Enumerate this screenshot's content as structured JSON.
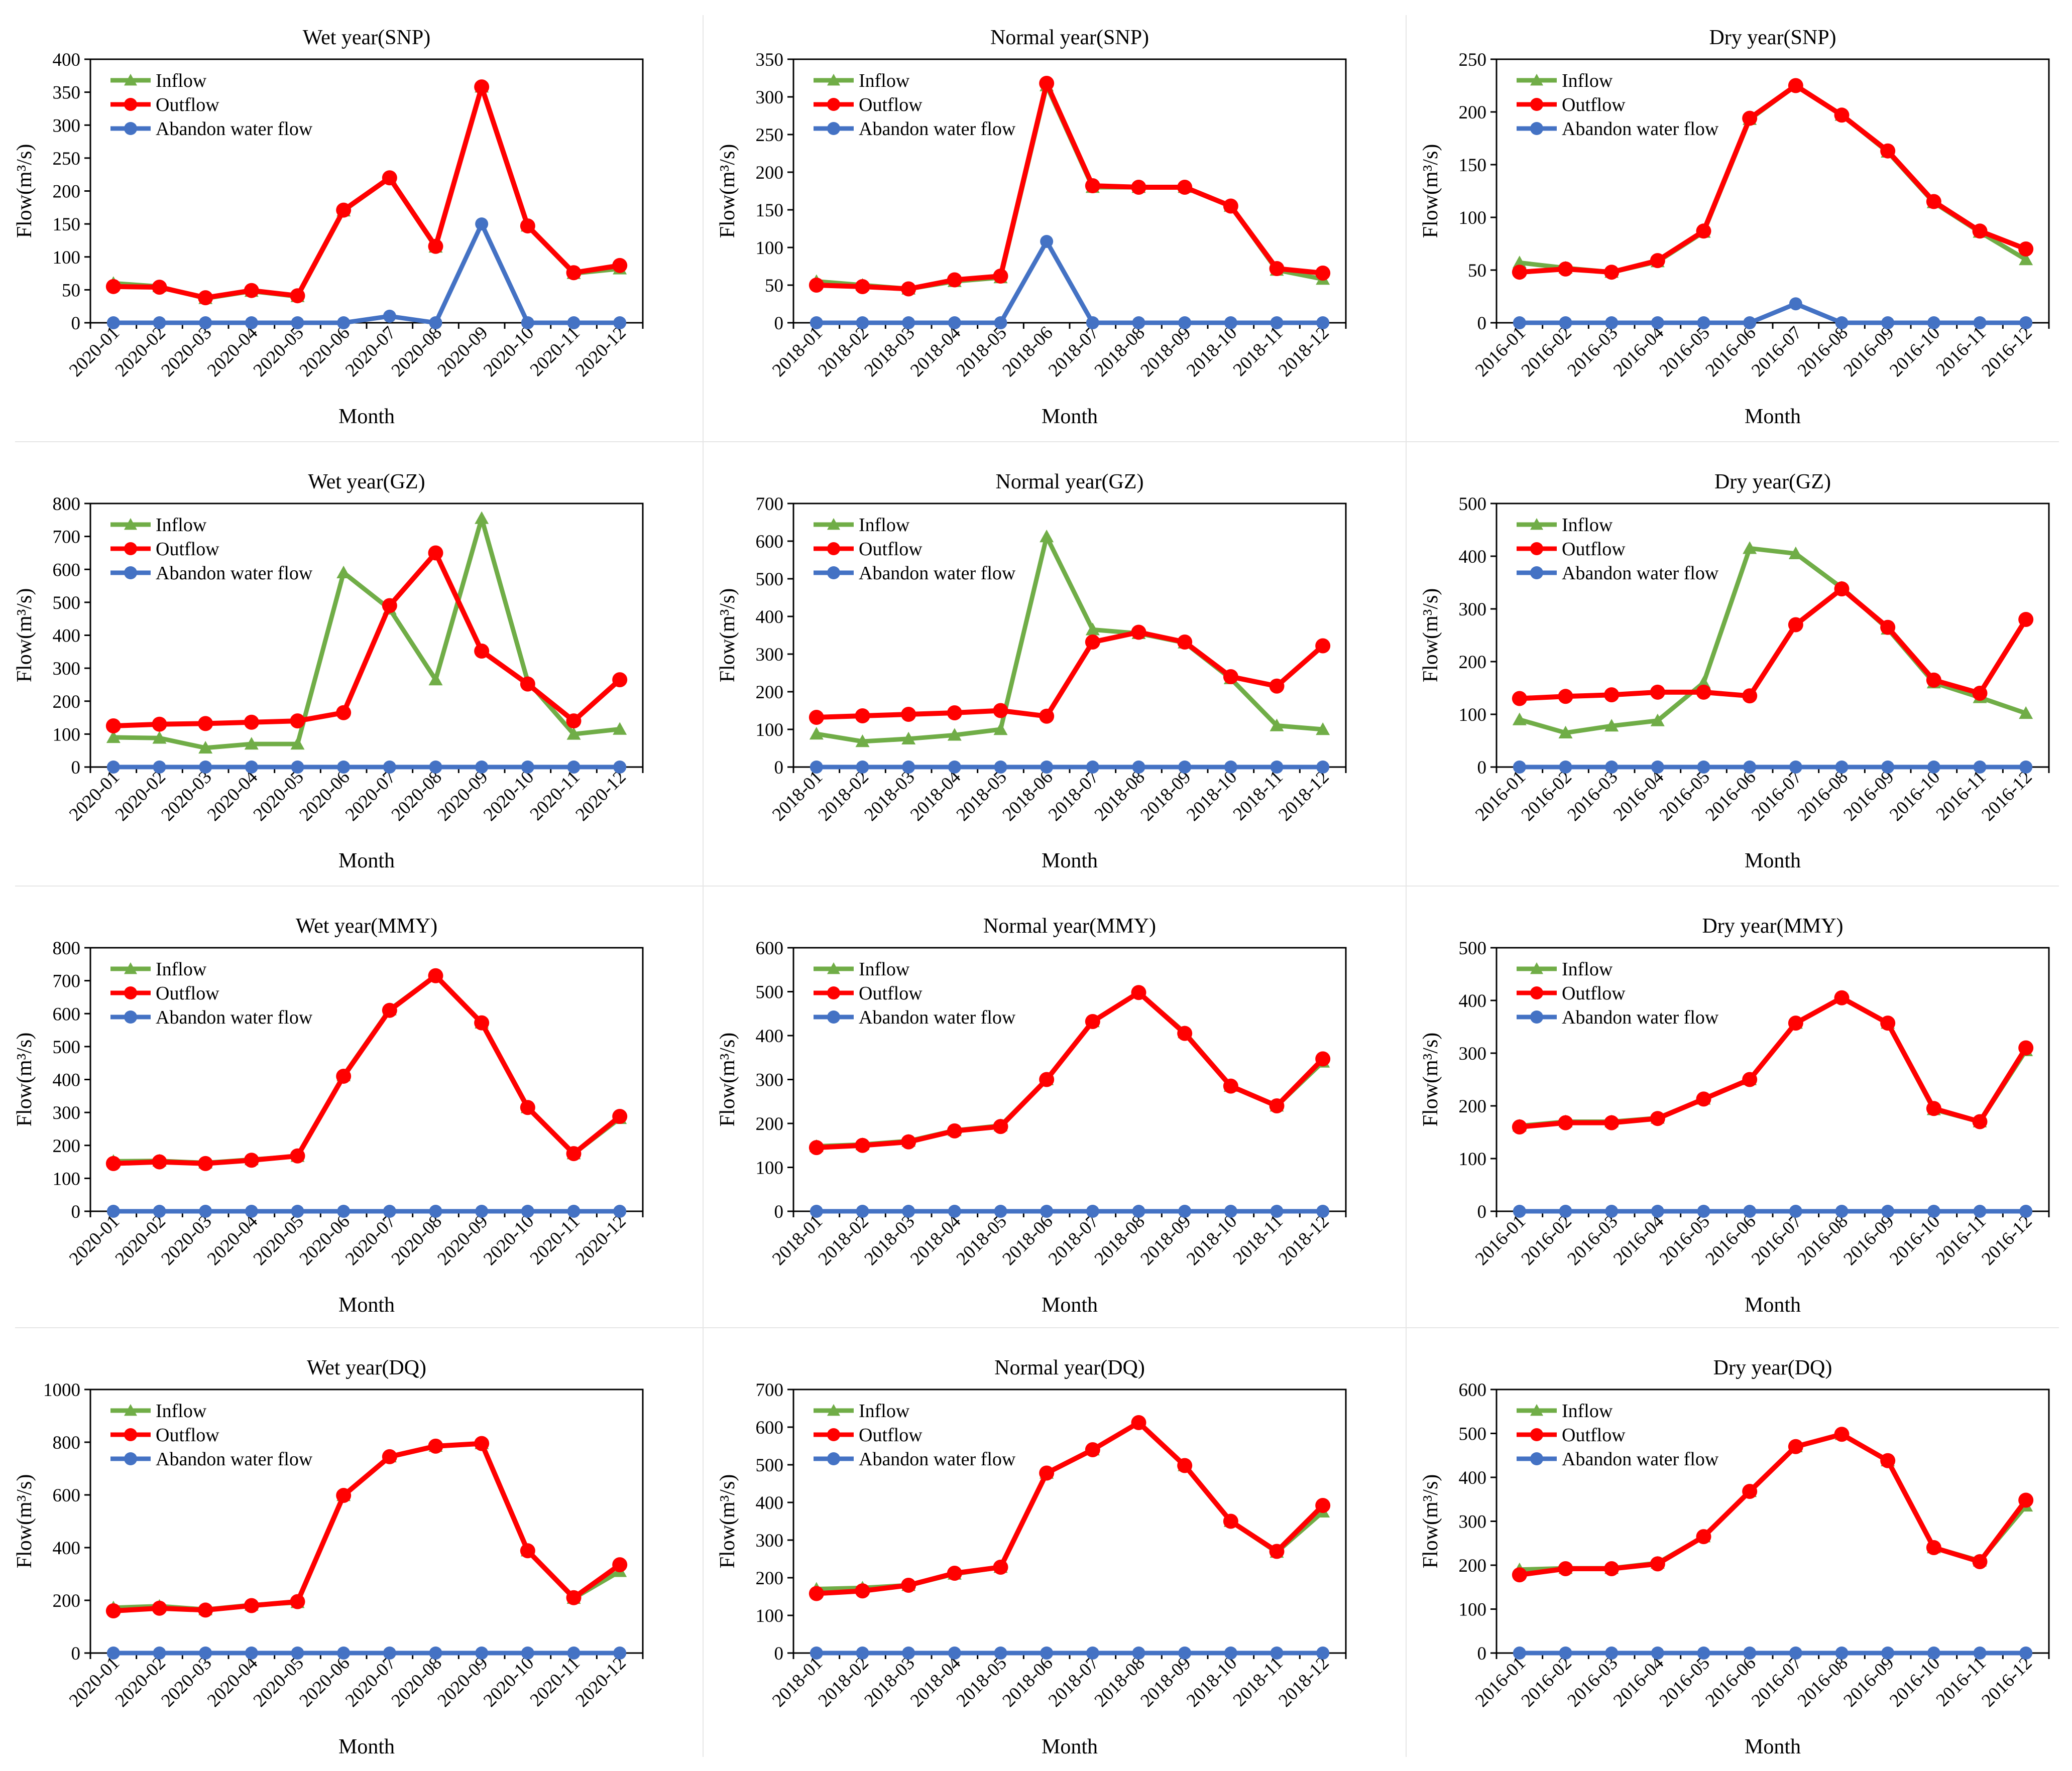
{
  "colors": {
    "inflow": "#70ad47",
    "outflow": "#ff0000",
    "abandon": "#4472c4"
  },
  "chart_data": [
    {
      "type": "line",
      "title": "Wet year(SNP)",
      "xlabel": "Month",
      "ylabel": "Flow(m³/s)",
      "categories": [
        "2020-01",
        "2020-02",
        "2020-03",
        "2020-04",
        "2020-05",
        "2020-06",
        "2020-07",
        "2020-08",
        "2020-09",
        "2020-10",
        "2020-11",
        "2020-12"
      ],
      "ylim": [
        0,
        400
      ],
      "yticks": [
        "0",
        "50",
        "100",
        "150",
        "200",
        "250",
        "300",
        "350",
        "400"
      ],
      "series": [
        {
          "name": "Inflow",
          "values": [
            60,
            55,
            37,
            48,
            40,
            170,
            220,
            115,
            358,
            147,
            75,
            82
          ]
        },
        {
          "name": "Outflow",
          "values": [
            55,
            54,
            38,
            49,
            41,
            171,
            220,
            116,
            358,
            147,
            76,
            87
          ]
        },
        {
          "name": "Abandon water flow",
          "values": [
            0,
            0,
            0,
            0,
            0,
            0,
            10,
            0,
            150,
            0,
            0,
            0
          ]
        }
      ]
    },
    {
      "type": "line",
      "title": "Normal year(SNP)",
      "xlabel": "Month",
      "ylabel": "Flow(m³/s)",
      "categories": [
        "2018-01",
        "2018-02",
        "2018-03",
        "2018-04",
        "2018-05",
        "2018-06",
        "2018-07",
        "2018-08",
        "2018-09",
        "2018-10",
        "2018-11",
        "2018-12"
      ],
      "ylim": [
        0,
        350
      ],
      "yticks": [
        "0",
        "50",
        "100",
        "150",
        "200",
        "250",
        "300",
        "350"
      ],
      "series": [
        {
          "name": "Inflow",
          "values": [
            55,
            50,
            45,
            55,
            60,
            315,
            180,
            180,
            180,
            155,
            70,
            58
          ]
        },
        {
          "name": "Outflow",
          "values": [
            50,
            48,
            45,
            57,
            62,
            318,
            182,
            180,
            180,
            155,
            72,
            66
          ]
        },
        {
          "name": "Abandon water flow",
          "values": [
            0,
            0,
            0,
            0,
            0,
            108,
            0,
            0,
            0,
            0,
            0,
            0
          ]
        }
      ]
    },
    {
      "type": "line",
      "title": "Dry year(SNP)",
      "xlabel": "Month",
      "ylabel": "Flow(m³/s)",
      "categories": [
        "2016-01",
        "2016-02",
        "2016-03",
        "2016-04",
        "2016-05",
        "2016-06",
        "2016-07",
        "2016-08",
        "2016-09",
        "2016-10",
        "2016-11",
        "2016-12"
      ],
      "ylim": [
        0,
        250
      ],
      "yticks": [
        "0",
        "50",
        "100",
        "150",
        "200",
        "250"
      ],
      "series": [
        {
          "name": "Inflow",
          "values": [
            57,
            52,
            48,
            58,
            86,
            193,
            225,
            197,
            162,
            114,
            86,
            60
          ]
        },
        {
          "name": "Outflow",
          "values": [
            48,
            51,
            48,
            59,
            87,
            194,
            225,
            197,
            163,
            115,
            87,
            70
          ]
        },
        {
          "name": "Abandon water flow",
          "values": [
            0,
            0,
            0,
            0,
            0,
            0,
            18,
            0,
            0,
            0,
            0,
            0
          ]
        }
      ]
    },
    {
      "type": "line",
      "title": "Wet year(GZ)",
      "xlabel": "Month",
      "ylabel": "Flow(m³/s)",
      "categories": [
        "2020-01",
        "2020-02",
        "2020-03",
        "2020-04",
        "2020-05",
        "2020-06",
        "2020-07",
        "2020-08",
        "2020-09",
        "2020-10",
        "2020-11",
        "2020-12"
      ],
      "ylim": [
        0,
        800
      ],
      "yticks": [
        "0",
        "100",
        "200",
        "300",
        "400",
        "500",
        "600",
        "700",
        "800"
      ],
      "series": [
        {
          "name": "Inflow",
          "values": [
            90,
            88,
            58,
            70,
            70,
            590,
            480,
            265,
            755,
            260,
            100,
            115
          ]
        },
        {
          "name": "Outflow",
          "values": [
            125,
            130,
            132,
            136,
            140,
            165,
            490,
            650,
            352,
            252,
            140,
            265
          ]
        },
        {
          "name": "Abandon water flow",
          "values": [
            0,
            0,
            0,
            0,
            0,
            0,
            0,
            0,
            0,
            0,
            0,
            0
          ]
        }
      ]
    },
    {
      "type": "line",
      "title": "Normal year(GZ)",
      "xlabel": "Month",
      "ylabel": "Flow(m³/s)",
      "categories": [
        "2018-01",
        "2018-02",
        "2018-03",
        "2018-04",
        "2018-05",
        "2018-06",
        "2018-07",
        "2018-08",
        "2018-09",
        "2018-10",
        "2018-11",
        "2018-12"
      ],
      "ylim": [
        0,
        700
      ],
      "yticks": [
        "0",
        "100",
        "200",
        "300",
        "400",
        "500",
        "600",
        "700"
      ],
      "series": [
        {
          "name": "Inflow",
          "values": [
            88,
            68,
            75,
            85,
            100,
            612,
            365,
            355,
            330,
            235,
            110,
            100
          ]
        },
        {
          "name": "Outflow",
          "values": [
            132,
            136,
            140,
            144,
            150,
            135,
            332,
            358,
            332,
            240,
            215,
            322
          ]
        },
        {
          "name": "Abandon water flow",
          "values": [
            0,
            0,
            0,
            0,
            0,
            0,
            0,
            0,
            0,
            0,
            0,
            0
          ]
        }
      ]
    },
    {
      "type": "line",
      "title": "Dry year(GZ)",
      "xlabel": "Month",
      "ylabel": "Flow(m³/s)",
      "categories": [
        "2016-01",
        "2016-02",
        "2016-03",
        "2016-04",
        "2016-05",
        "2016-06",
        "2016-07",
        "2016-08",
        "2016-09",
        "2016-10",
        "2016-11",
        "2016-12"
      ],
      "ylim": [
        0,
        500
      ],
      "yticks": [
        "0",
        "100",
        "200",
        "300",
        "400",
        "500"
      ],
      "series": [
        {
          "name": "Inflow",
          "values": [
            90,
            65,
            78,
            88,
            160,
            415,
            405,
            340,
            262,
            160,
            132,
            102
          ]
        },
        {
          "name": "Outflow",
          "values": [
            130,
            134,
            137,
            142,
            142,
            135,
            270,
            338,
            265,
            165,
            140,
            280
          ]
        },
        {
          "name": "Abandon water flow",
          "values": [
            0,
            0,
            0,
            0,
            0,
            0,
            0,
            0,
            0,
            0,
            0,
            0
          ]
        }
      ]
    },
    {
      "type": "line",
      "title": "Wet year(MMY)",
      "xlabel": "Month",
      "ylabel": "Flow(m³/s)",
      "categories": [
        "2020-01",
        "2020-02",
        "2020-03",
        "2020-04",
        "2020-05",
        "2020-06",
        "2020-07",
        "2020-08",
        "2020-09",
        "2020-10",
        "2020-11",
        "2020-12"
      ],
      "ylim": [
        0,
        800
      ],
      "yticks": [
        "0",
        "100",
        "200",
        "300",
        "400",
        "500",
        "600",
        "700",
        "800"
      ],
      "series": [
        {
          "name": "Inflow",
          "values": [
            152,
            153,
            147,
            157,
            167,
            412,
            612,
            715,
            572,
            315,
            175,
            282
          ]
        },
        {
          "name": "Outflow",
          "values": [
            145,
            150,
            145,
            155,
            168,
            410,
            610,
            715,
            572,
            315,
            175,
            288
          ]
        },
        {
          "name": "Abandon water flow",
          "values": [
            0,
            0,
            0,
            0,
            0,
            0,
            0,
            0,
            0,
            0,
            0,
            0
          ]
        }
      ]
    },
    {
      "type": "line",
      "title": "Normal year(MMY)",
      "xlabel": "Month",
      "ylabel": "Flow(m³/s)",
      "categories": [
        "2018-01",
        "2018-02",
        "2018-03",
        "2018-04",
        "2018-05",
        "2018-06",
        "2018-07",
        "2018-08",
        "2018-09",
        "2018-10",
        "2018-11",
        "2018-12"
      ],
      "ylim": [
        0,
        600
      ],
      "yticks": [
        "0",
        "100",
        "200",
        "300",
        "400",
        "500",
        "600"
      ],
      "series": [
        {
          "name": "Inflow",
          "values": [
            148,
            152,
            160,
            184,
            195,
            300,
            432,
            498,
            407,
            285,
            240,
            340
          ]
        },
        {
          "name": "Outflow",
          "values": [
            145,
            150,
            158,
            183,
            193,
            300,
            432,
            498,
            405,
            285,
            240,
            347
          ]
        },
        {
          "name": "Abandon water flow",
          "values": [
            0,
            0,
            0,
            0,
            0,
            0,
            0,
            0,
            0,
            0,
            0,
            0
          ]
        }
      ]
    },
    {
      "type": "line",
      "title": "Dry year(MMY)",
      "xlabel": "Month",
      "ylabel": "Flow(m³/s)",
      "categories": [
        "2016-01",
        "2016-02",
        "2016-03",
        "2016-04",
        "2016-05",
        "2016-06",
        "2016-07",
        "2016-08",
        "2016-09",
        "2016-10",
        "2016-11",
        "2016-12"
      ],
      "ylim": [
        0,
        500
      ],
      "yticks": [
        "0",
        "100",
        "200",
        "300",
        "400",
        "500"
      ],
      "series": [
        {
          "name": "Inflow",
          "values": [
            162,
            170,
            170,
            177,
            213,
            250,
            357,
            405,
            357,
            193,
            170,
            305
          ]
        },
        {
          "name": "Outflow",
          "values": [
            160,
            168,
            168,
            176,
            213,
            250,
            357,
            405,
            357,
            195,
            170,
            310
          ]
        },
        {
          "name": "Abandon water flow",
          "values": [
            0,
            0,
            0,
            0,
            0,
            0,
            0,
            0,
            0,
            0,
            0,
            0
          ]
        }
      ]
    },
    {
      "type": "line",
      "title": "Wet year(DQ)",
      "xlabel": "Month",
      "ylabel": "Flow(m³/s)",
      "categories": [
        "2020-01",
        "2020-02",
        "2020-03",
        "2020-04",
        "2020-05",
        "2020-06",
        "2020-07",
        "2020-08",
        "2020-09",
        "2020-10",
        "2020-11",
        "2020-12"
      ],
      "ylim": [
        0,
        1000
      ],
      "yticks": [
        "0",
        "200",
        "400",
        "600",
        "800",
        "1000"
      ],
      "series": [
        {
          "name": "Inflow",
          "values": [
            172,
            178,
            165,
            182,
            192,
            598,
            745,
            785,
            795,
            388,
            208,
            310
          ]
        },
        {
          "name": "Outflow",
          "values": [
            160,
            170,
            163,
            180,
            195,
            598,
            745,
            785,
            795,
            388,
            210,
            335
          ]
        },
        {
          "name": "Abandon water flow",
          "values": [
            0,
            0,
            0,
            0,
            0,
            0,
            0,
            0,
            0,
            0,
            0,
            0
          ]
        }
      ]
    },
    {
      "type": "line",
      "title": "Normal year(DQ)",
      "xlabel": "Month",
      "ylabel": "Flow(m³/s)",
      "categories": [
        "2018-01",
        "2018-02",
        "2018-03",
        "2018-04",
        "2018-05",
        "2018-06",
        "2018-07",
        "2018-08",
        "2018-09",
        "2018-10",
        "2018-11",
        "2018-12"
      ],
      "ylim": [
        0,
        700
      ],
      "yticks": [
        "0",
        "100",
        "200",
        "300",
        "400",
        "500",
        "600",
        "700"
      ],
      "series": [
        {
          "name": "Inflow",
          "values": [
            170,
            173,
            180,
            210,
            228,
            478,
            540,
            612,
            498,
            350,
            268,
            375
          ]
        },
        {
          "name": "Outflow",
          "values": [
            158,
            165,
            180,
            212,
            228,
            478,
            540,
            612,
            498,
            350,
            270,
            392
          ]
        },
        {
          "name": "Abandon water flow",
          "values": [
            0,
            0,
            0,
            0,
            0,
            0,
            0,
            0,
            0,
            0,
            0,
            0
          ]
        }
      ]
    },
    {
      "type": "line",
      "title": "Dry year(DQ)",
      "xlabel": "Month",
      "ylabel": "Flow(m³/s)",
      "categories": [
        "2016-01",
        "2016-02",
        "2016-03",
        "2016-04",
        "2016-05",
        "2016-06",
        "2016-07",
        "2016-08",
        "2016-09",
        "2016-10",
        "2016-11",
        "2016-12"
      ],
      "ylim": [
        0,
        600
      ],
      "yticks": [
        "0",
        "100",
        "200",
        "300",
        "400",
        "500",
        "600"
      ],
      "series": [
        {
          "name": "Inflow",
          "values": [
            190,
            193,
            193,
            205,
            265,
            368,
            470,
            498,
            438,
            240,
            210,
            335
          ]
        },
        {
          "name": "Outflow",
          "values": [
            178,
            192,
            192,
            203,
            265,
            368,
            470,
            498,
            438,
            240,
            208,
            348
          ]
        },
        {
          "name": "Abandon water flow",
          "values": [
            0,
            0,
            0,
            0,
            0,
            0,
            0,
            0,
            0,
            0,
            0,
            0
          ]
        }
      ]
    }
  ]
}
